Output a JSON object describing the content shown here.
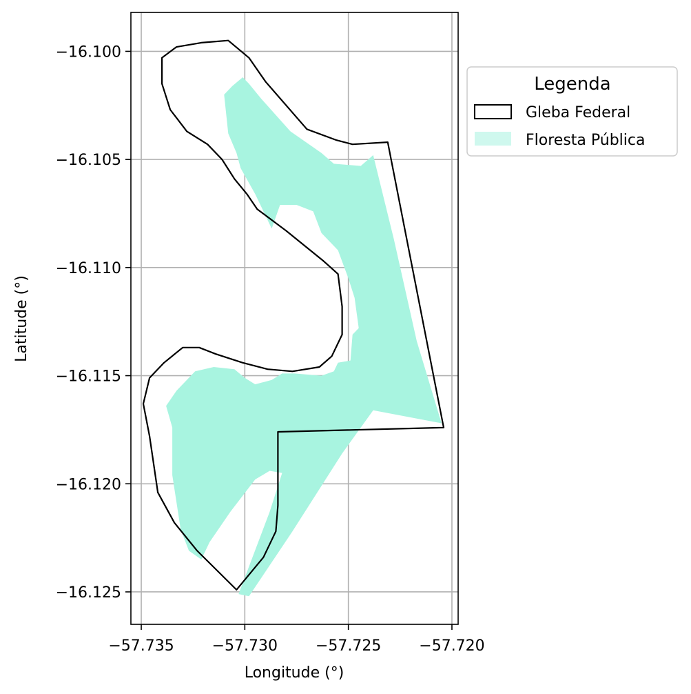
{
  "chart_data": {
    "type": "map",
    "xlabel": "Longitude (°)",
    "ylabel": "Latitude (°)",
    "xlim": [
      -57.7355,
      -57.7197
    ],
    "ylim": [
      -16.1265,
      -16.0982
    ],
    "grid": true,
    "x_ticks": [
      -57.735,
      -57.73,
      -57.725,
      -57.72
    ],
    "x_tick_labels": [
      "−57.735",
      "−57.730",
      "−57.725",
      "−57.720"
    ],
    "y_ticks": [
      -16.1,
      -16.105,
      -16.11,
      -16.115,
      -16.12,
      -16.125
    ],
    "y_tick_labels": [
      "−16.100",
      "−16.105",
      "−16.110",
      "−16.115",
      "−16.120",
      "−16.125"
    ],
    "legend": {
      "title": "Legenda",
      "placement": "outside upper right",
      "entries": [
        {
          "label": "Gleba Federal",
          "style": "outline"
        },
        {
          "label": "Floresta Pública",
          "style": "fill"
        }
      ]
    },
    "colors": {
      "gleba": "#000000",
      "floresta": "#a8f4e0",
      "grid": "#b0b0b0"
    },
    "series": [
      {
        "name": "Floresta Pública",
        "kind": "polygon",
        "points": [
          [
            -57.7301,
            -16.1012
          ],
          [
            -57.7298,
            -16.1015
          ],
          [
            -57.7292,
            -16.1022
          ],
          [
            -57.7278,
            -16.1037
          ],
          [
            -57.7263,
            -16.1047
          ],
          [
            -57.7257,
            -16.1052
          ],
          [
            -57.7244,
            -16.1053
          ],
          [
            -57.7238,
            -16.1048
          ],
          [
            -57.7228,
            -16.1087
          ],
          [
            -57.7217,
            -16.1134
          ],
          [
            -57.7205,
            -16.1172
          ],
          [
            -57.7238,
            -16.1166
          ],
          [
            -57.7253,
            -16.1186
          ],
          [
            -57.7277,
            -16.1222
          ],
          [
            -57.7298,
            -16.1252
          ],
          [
            -57.7303,
            -16.1251
          ],
          [
            -57.7288,
            -16.1213
          ],
          [
            -57.7282,
            -16.1195
          ],
          [
            -57.7288,
            -16.1194
          ],
          [
            -57.7295,
            -16.1198
          ],
          [
            -57.7307,
            -16.1213
          ],
          [
            -57.7317,
            -16.1227
          ],
          [
            -57.7321,
            -16.1235
          ],
          [
            -57.7327,
            -16.1231
          ],
          [
            -57.7331,
            -16.1221
          ],
          [
            -57.7335,
            -16.1196
          ],
          [
            -57.7335,
            -16.1174
          ],
          [
            -57.7338,
            -16.1164
          ],
          [
            -57.7333,
            -16.1157
          ],
          [
            -57.7324,
            -16.1148
          ],
          [
            -57.7315,
            -16.1146
          ],
          [
            -57.7305,
            -16.1147
          ],
          [
            -57.73,
            -16.1151
          ],
          [
            -57.7295,
            -16.1154
          ],
          [
            -57.7287,
            -16.1152
          ],
          [
            -57.7282,
            -16.1149
          ],
          [
            -57.7276,
            -16.1149
          ],
          [
            -57.7263,
            -16.115
          ],
          [
            -57.7257,
            -16.1148
          ],
          [
            -57.7255,
            -16.1144
          ],
          [
            -57.7249,
            -16.1143
          ],
          [
            -57.7248,
            -16.1131
          ],
          [
            -57.7245,
            -16.1128
          ],
          [
            -57.7247,
            -16.1114
          ],
          [
            -57.725,
            -16.1105
          ],
          [
            -57.7255,
            -16.1092
          ],
          [
            -57.7263,
            -16.1084
          ],
          [
            -57.7267,
            -16.1074
          ],
          [
            -57.7275,
            -16.1071
          ],
          [
            -57.7283,
            -16.1071
          ],
          [
            -57.7287,
            -16.1082
          ],
          [
            -57.7289,
            -16.1078
          ],
          [
            -57.7295,
            -16.1066
          ],
          [
            -57.7302,
            -16.1054
          ],
          [
            -57.7304,
            -16.1047
          ],
          [
            -57.7308,
            -16.1038
          ],
          [
            -57.731,
            -16.102
          ],
          [
            -57.7306,
            -16.1016
          ]
        ]
      },
      {
        "name": "Gleba Federal",
        "kind": "polygon",
        "points": [
          [
            -57.7321,
            -16.0996
          ],
          [
            -57.7308,
            -16.0995
          ],
          [
            -57.7298,
            -16.1003
          ],
          [
            -57.729,
            -16.1014
          ],
          [
            -57.727,
            -16.1036
          ],
          [
            -57.7256,
            -16.1041
          ],
          [
            -57.7248,
            -16.1043
          ],
          [
            -57.7231,
            -16.1042
          ],
          [
            -57.7204,
            -16.1174
          ],
          [
            -57.7284,
            -16.1176
          ],
          [
            -57.7284,
            -16.121
          ],
          [
            -57.7285,
            -16.1222
          ],
          [
            -57.7291,
            -16.1234
          ],
          [
            -57.7304,
            -16.1249
          ],
          [
            -57.7323,
            -16.1231
          ],
          [
            -57.7334,
            -16.1218
          ],
          [
            -57.7342,
            -16.1204
          ],
          [
            -57.7346,
            -16.1178
          ],
          [
            -57.7349,
            -16.1163
          ],
          [
            -57.7346,
            -16.1151
          ],
          [
            -57.7339,
            -16.1144
          ],
          [
            -57.733,
            -16.1137
          ],
          [
            -57.7322,
            -16.1137
          ],
          [
            -57.7314,
            -16.114
          ],
          [
            -57.7301,
            -16.1144
          ],
          [
            -57.7289,
            -16.1147
          ],
          [
            -57.7277,
            -16.1148
          ],
          [
            -57.7264,
            -16.1146
          ],
          [
            -57.7258,
            -16.1141
          ],
          [
            -57.7253,
            -16.1131
          ],
          [
            -57.7253,
            -16.1118
          ],
          [
            -57.7255,
            -16.1103
          ],
          [
            -57.7262,
            -16.1097
          ],
          [
            -57.728,
            -16.1083
          ],
          [
            -57.7294,
            -16.1073
          ],
          [
            -57.7299,
            -16.1066
          ],
          [
            -57.7305,
            -16.1059
          ],
          [
            -57.7311,
            -16.105
          ],
          [
            -57.7318,
            -16.1043
          ],
          [
            -57.7328,
            -16.1037
          ],
          [
            -57.7336,
            -16.1027
          ],
          [
            -57.7338,
            -16.1021
          ],
          [
            -57.734,
            -16.1015
          ],
          [
            -57.734,
            -16.1003
          ],
          [
            -57.7333,
            -16.0998
          ]
        ]
      }
    ]
  }
}
